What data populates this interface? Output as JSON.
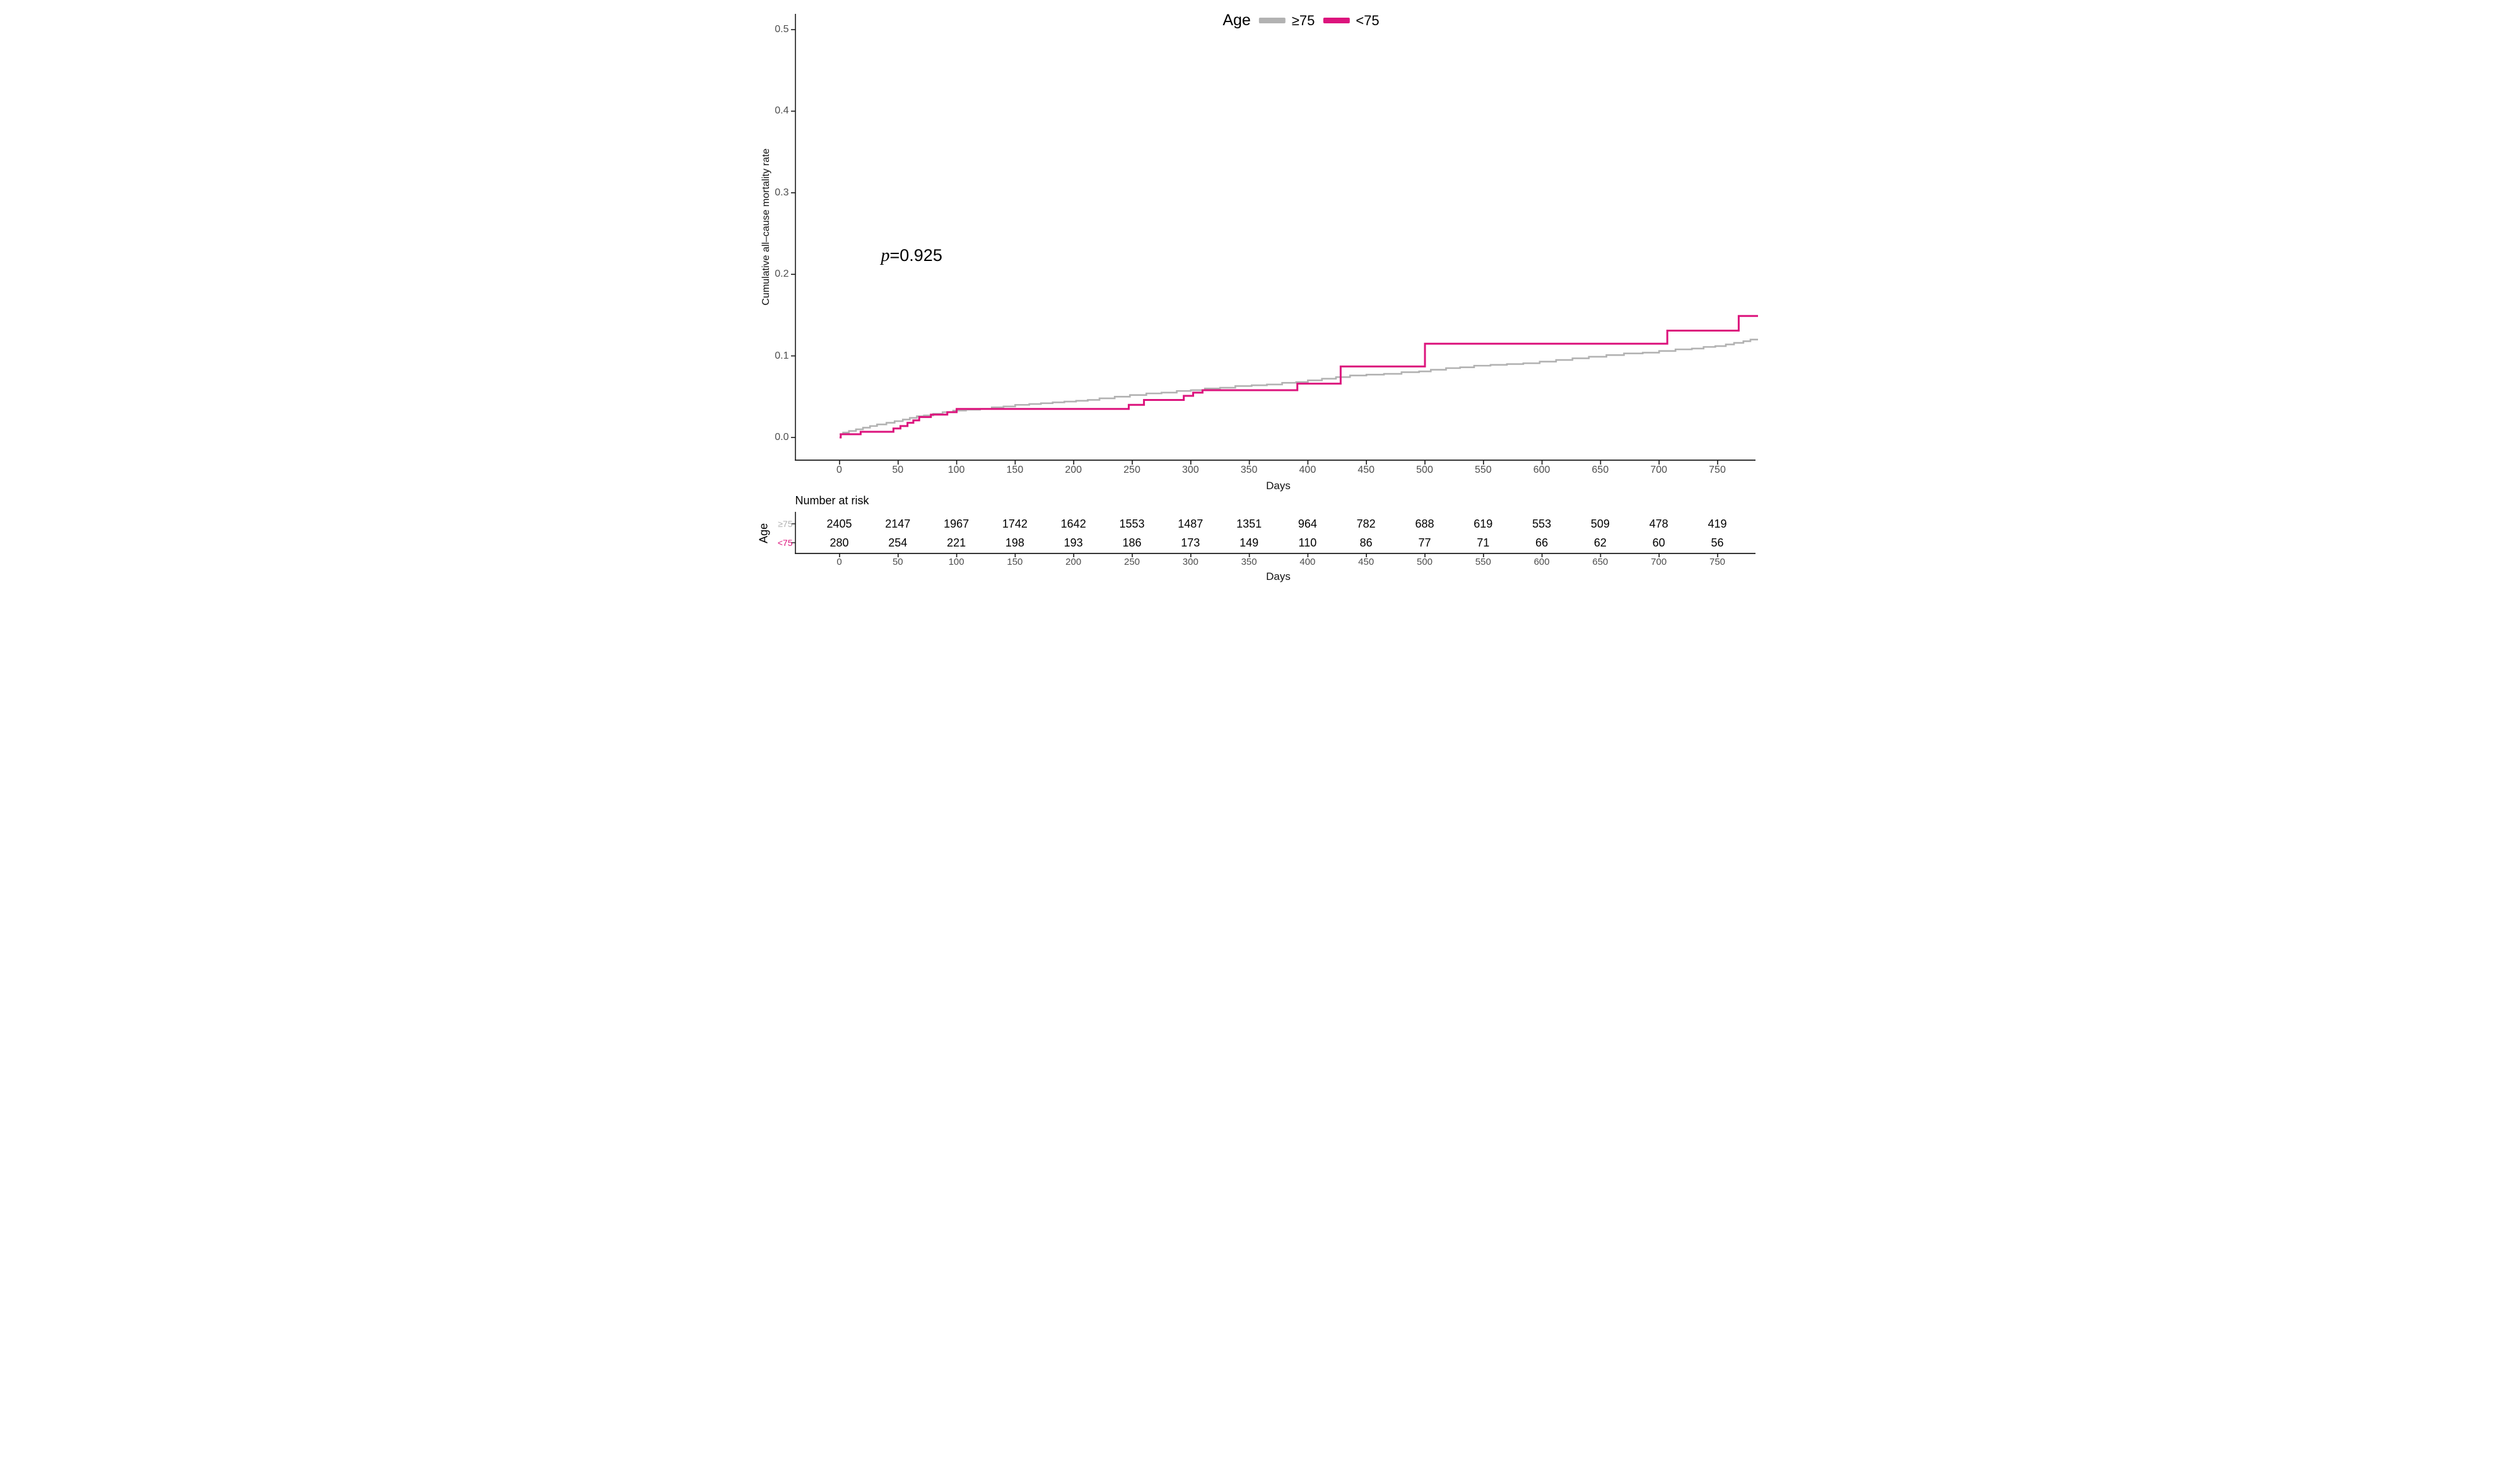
{
  "chart": {
    "legend": {
      "title": "Age",
      "items": [
        {
          "label": "≥75",
          "color": "#b2b2b2"
        },
        {
          "label": "<75",
          "color": "#dc147d"
        }
      ]
    },
    "annotation": {
      "p_symbol": "p",
      "p_value": "=0.925"
    },
    "y_axis_title": "Cumulative all–cause mortality rate",
    "x_axis_title": "Days"
  },
  "risk_table": {
    "title": "Number at risk",
    "group_label": "Age",
    "x_axis_title": "Days",
    "rows": [
      {
        "label": "≥75",
        "color": "#b2b2b2",
        "values": [
          2405,
          2147,
          1967,
          1742,
          1642,
          1553,
          1487,
          1351,
          964,
          782,
          688,
          619,
          553,
          509,
          478,
          419
        ]
      },
      {
        "label": "<75",
        "color": "#dc147d",
        "values": [
          280,
          254,
          221,
          198,
          193,
          186,
          173,
          149,
          110,
          86,
          77,
          71,
          66,
          62,
          60,
          56
        ]
      }
    ]
  },
  "chart_data": {
    "type": "line",
    "subtype": "kaplan-meier-cumulative-incidence-step",
    "title": "",
    "xlabel": "Days",
    "ylabel": "Cumulative all–cause mortality rate",
    "xlim": [
      0,
      780
    ],
    "ylim": [
      0,
      0.5
    ],
    "x_ticks": [
      0,
      50,
      100,
      150,
      200,
      250,
      300,
      350,
      400,
      450,
      500,
      550,
      600,
      650,
      700,
      750
    ],
    "y_ticks": [
      0,
      0.1,
      0.2,
      0.3,
      0.4,
      0.5
    ],
    "y_tick_labels": [
      "0.0",
      "0.1",
      "0.2",
      "0.3",
      "0.4",
      "0.5"
    ],
    "grid": false,
    "legend_position": "top-center",
    "annotations": [
      "p=0.925"
    ],
    "series": [
      {
        "name": "≥75",
        "color": "#b2b2b2",
        "stroke_width": 2.6,
        "points": [
          [
            0,
            0.004
          ],
          [
            3,
            0.006
          ],
          [
            8,
            0.008
          ],
          [
            14,
            0.01
          ],
          [
            20,
            0.012
          ],
          [
            26,
            0.014
          ],
          [
            32,
            0.016
          ],
          [
            40,
            0.018
          ],
          [
            47,
            0.02
          ],
          [
            54,
            0.022
          ],
          [
            60,
            0.024
          ],
          [
            66,
            0.026
          ],
          [
            72,
            0.027
          ],
          [
            80,
            0.029
          ],
          [
            88,
            0.031
          ],
          [
            97,
            0.033
          ],
          [
            108,
            0.034
          ],
          [
            120,
            0.035
          ],
          [
            130,
            0.037
          ],
          [
            140,
            0.038
          ],
          [
            150,
            0.04
          ],
          [
            162,
            0.041
          ],
          [
            172,
            0.042
          ],
          [
            182,
            0.043
          ],
          [
            192,
            0.044
          ],
          [
            202,
            0.045
          ],
          [
            212,
            0.046
          ],
          [
            222,
            0.048
          ],
          [
            235,
            0.05
          ],
          [
            248,
            0.052
          ],
          [
            262,
            0.054
          ],
          [
            275,
            0.055
          ],
          [
            288,
            0.057
          ],
          [
            300,
            0.058
          ],
          [
            312,
            0.06
          ],
          [
            325,
            0.061
          ],
          [
            338,
            0.063
          ],
          [
            352,
            0.064
          ],
          [
            365,
            0.065
          ],
          [
            378,
            0.067
          ],
          [
            390,
            0.068
          ],
          [
            400,
            0.07
          ],
          [
            412,
            0.072
          ],
          [
            424,
            0.074
          ],
          [
            436,
            0.076
          ],
          [
            450,
            0.077
          ],
          [
            465,
            0.078
          ],
          [
            480,
            0.08
          ],
          [
            495,
            0.081
          ],
          [
            505,
            0.083
          ],
          [
            518,
            0.085
          ],
          [
            530,
            0.086
          ],
          [
            542,
            0.088
          ],
          [
            556,
            0.089
          ],
          [
            570,
            0.09
          ],
          [
            584,
            0.091
          ],
          [
            598,
            0.093
          ],
          [
            612,
            0.095
          ],
          [
            626,
            0.097
          ],
          [
            640,
            0.099
          ],
          [
            655,
            0.101
          ],
          [
            670,
            0.103
          ],
          [
            686,
            0.104
          ],
          [
            700,
            0.106
          ],
          [
            714,
            0.108
          ],
          [
            728,
            0.109
          ],
          [
            738,
            0.111
          ],
          [
            748,
            0.112
          ],
          [
            757,
            0.114
          ],
          [
            764,
            0.116
          ],
          [
            772,
            0.118
          ],
          [
            778,
            0.12
          ],
          [
            780,
            0.12
          ]
        ]
      },
      {
        "name": "<75",
        "color": "#dc147d",
        "stroke_width": 3,
        "points": [
          [
            0,
            0.0
          ],
          [
            1,
            0.004
          ],
          [
            18,
            0.007
          ],
          [
            46,
            0.011
          ],
          [
            52,
            0.014
          ],
          [
            58,
            0.018
          ],
          [
            63,
            0.021
          ],
          [
            68,
            0.025
          ],
          [
            78,
            0.028
          ],
          [
            92,
            0.031
          ],
          [
            100,
            0.035
          ],
          [
            247,
            0.04
          ],
          [
            260,
            0.046
          ],
          [
            294,
            0.051
          ],
          [
            302,
            0.055
          ],
          [
            310,
            0.058
          ],
          [
            391,
            0.066
          ],
          [
            428,
            0.087
          ],
          [
            500,
            0.115
          ],
          [
            707,
            0.131
          ],
          [
            768,
            0.149
          ],
          [
            780,
            0.149
          ]
        ]
      }
    ]
  },
  "colors": {
    "axis": "#1a1a1a",
    "tick_label": "#4d4d4d",
    "text": "#000000"
  }
}
